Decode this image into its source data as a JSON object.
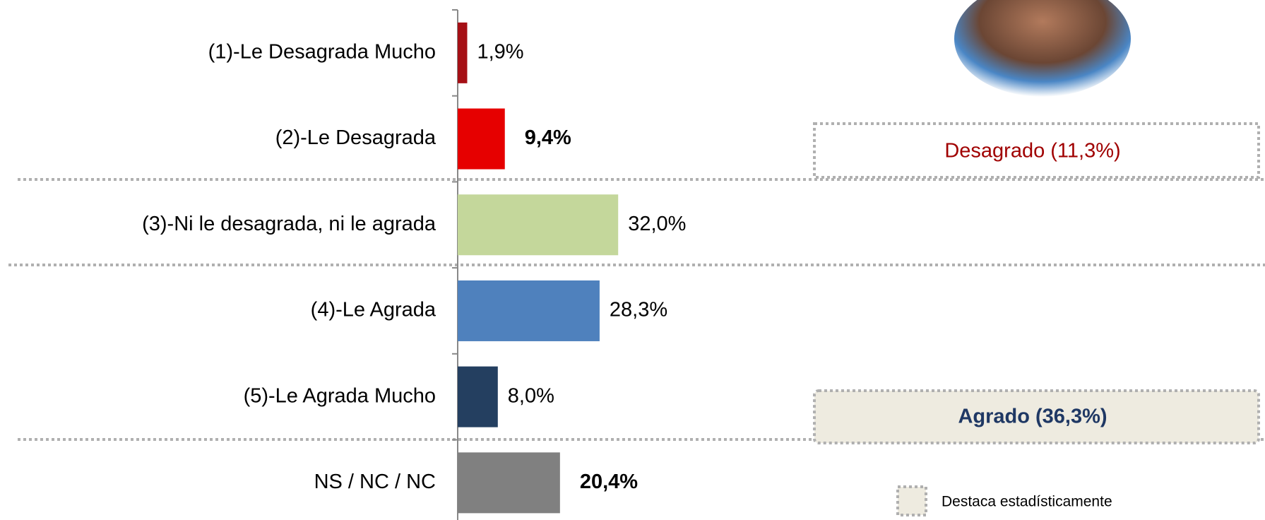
{
  "chart_data": {
    "type": "bar",
    "orientation": "horizontal",
    "categories": [
      "(1)-Le Desagrada Mucho",
      "(2)-Le Desagrada",
      "(3)-Ni le desagrada, ni le agrada",
      "(4)-Le Agrada",
      "(5)-Le Agrada Mucho",
      "NS / NC / NC"
    ],
    "values": [
      1.9,
      9.4,
      32.0,
      28.3,
      8.0,
      20.4
    ],
    "value_labels": [
      "1,9%",
      "9,4%",
      "32,0%",
      "28,3%",
      "8,0%",
      "20,4%"
    ],
    "colors": [
      "#a50f15",
      "#e60000",
      "#c4d79b",
      "#4f81bd",
      "#243f60",
      "#808080"
    ],
    "bold_labels": [
      false,
      true,
      false,
      false,
      false,
      true
    ],
    "annotations": [
      "Desagrado (11,3%)",
      "Agrado (36,3%)"
    ],
    "legend": "Destaca estadísticamente"
  }
}
